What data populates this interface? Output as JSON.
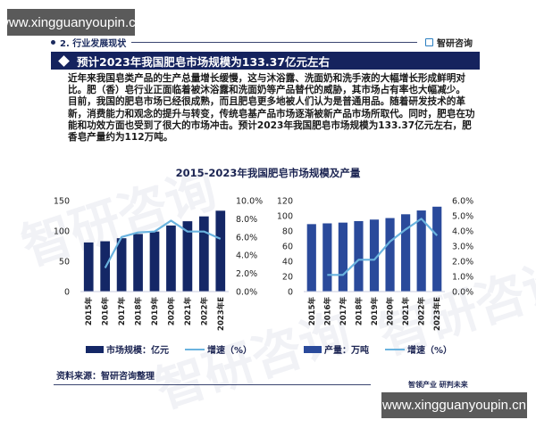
{
  "watermarks": {
    "top_left": "www.xingguanyoupin.cn",
    "bottom_right": "www.xingguanyoupin.cn"
  },
  "header": {
    "section": "2. 行业发展现状",
    "brand": "智研咨询"
  },
  "banner": {
    "title": "预计2023年我国肥皂市场规模为133.37亿元左右"
  },
  "body": {
    "paragraphs": [
      "近年来我国皂类产品的生产总量增长缓慢，这与沐浴露、洗面奶和洗手液的大幅增长形成鲜明对比。肥（香）皂行业正面临着被沐浴露和洗面奶等产品替代的威胁，其市场占有率也大幅减少。",
      "目前，我国的肥皂市场已经很成熟，而且肥皂更多地被人们认为是普通用品。随着研发技术的革新，消费能力和观念的提升与转变，传统皂基产品市场逐渐被新产品市场所取代。同时，肥皂在功能和功效方面也受到了很大的市场冲击。预计2023年我国肥皂市场规模为133.37亿元左右，肥香皂产量约为112万吨。"
    ]
  },
  "chart_title": "2015-2023年我国肥皂市场规模及产量",
  "footer": {
    "source": "资料来源：智研咨询整理",
    "slogan": "智领产业 研判未来"
  },
  "colors": {
    "banner_bg": "#15235e",
    "left_bars": "#142766",
    "right_bars": "#2a4a9b",
    "growth_line": "#6ab3df"
  },
  "chart_data": [
    {
      "type": "bar",
      "title": "2015-2023年我国肥皂市场规模",
      "categories": [
        "2015年",
        "2016年",
        "2017年",
        "2018年",
        "2019年",
        "2020年",
        "2021年",
        "2022年",
        "2023年E"
      ],
      "series": [
        {
          "name": "市场规模：亿元",
          "type": "bar",
          "axis": "left",
          "values": [
            81,
            83,
            88,
            95,
            99,
            109,
            116,
            124,
            133.37
          ]
        },
        {
          "name": "增速（%）",
          "type": "line",
          "axis": "right",
          "values": [
            null,
            2.6,
            6.0,
            6.5,
            6.6,
            7.8,
            6.6,
            6.6,
            5.8
          ]
        }
      ],
      "y_left": {
        "ticks": [
          "0",
          "50",
          "100",
          "150"
        ],
        "range": [
          0,
          150
        ]
      },
      "y_right": {
        "ticks": [
          "0.0%",
          "2.0%",
          "4.0%",
          "6.0%",
          "8.0%",
          "10.0%"
        ],
        "range": [
          0,
          10
        ]
      },
      "legend": [
        "市场规模：亿元",
        "增速（%）"
      ],
      "legend_position": "bottom",
      "grid": false
    },
    {
      "type": "bar",
      "title": "2015-2023年我国肥皂产量",
      "categories": [
        "2015年",
        "2016年",
        "2017年",
        "2018年",
        "2019年",
        "2020年",
        "2021年",
        "2022年",
        "2023年E"
      ],
      "series": [
        {
          "name": "产量：万吨",
          "type": "bar",
          "axis": "left",
          "values": [
            89,
            90,
            91,
            93,
            95,
            97,
            102,
            107,
            112
          ]
        },
        {
          "name": "增速（%）",
          "type": "line",
          "axis": "right",
          "values": [
            null,
            1.1,
            1.1,
            2.1,
            2.1,
            3.3,
            4.1,
            4.8,
            3.7
          ]
        }
      ],
      "y_left": {
        "ticks": [
          "0",
          "20",
          "40",
          "60",
          "80",
          "100",
          "120"
        ],
        "range": [
          0,
          120
        ]
      },
      "y_right": {
        "ticks": [
          "0.0%",
          "1.0%",
          "2.0%",
          "3.0%",
          "4.0%",
          "5.0%",
          "6.0%"
        ],
        "range": [
          0,
          6
        ]
      },
      "legend": [
        "产量：万吨",
        "增速（%）"
      ],
      "legend_position": "bottom",
      "grid": false
    }
  ]
}
